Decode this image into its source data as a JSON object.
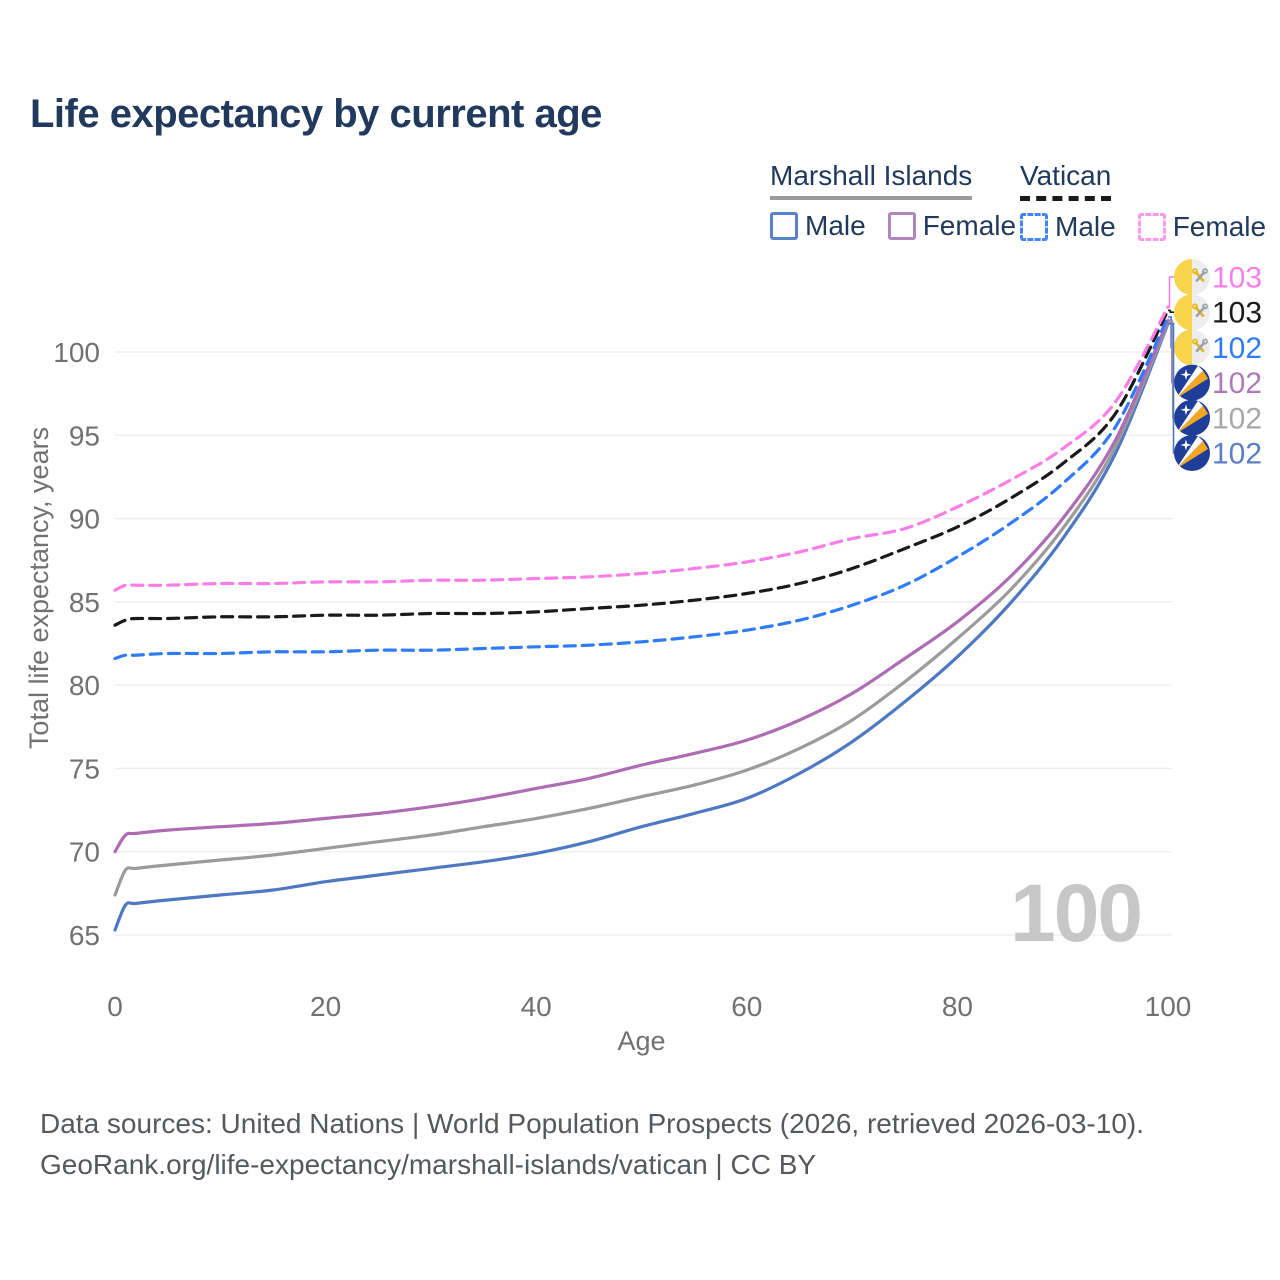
{
  "title": "Life expectancy by current age",
  "legend": {
    "groups": [
      {
        "name": "Marshall Islands",
        "underline_color": "#9b9b9b",
        "underline_style": "solid",
        "items": [
          {
            "label": "Male",
            "color": "#5b82c8",
            "style": "solid"
          },
          {
            "label": "Female",
            "color": "#b286bd",
            "style": "solid"
          }
        ]
      },
      {
        "name": "Vatican",
        "underline_color": "#1a1a1a",
        "underline_style": "dashed",
        "items": [
          {
            "label": "Male",
            "color": "#4285f4",
            "style": "dashed"
          },
          {
            "label": "Female",
            "color": "#fc9aec",
            "style": "dashed"
          }
        ]
      }
    ]
  },
  "chart_data": {
    "type": "line",
    "title": "Life expectancy by current age",
    "xlabel": "Age",
    "ylabel": "Total life expectancy, years",
    "xlim": [
      0,
      100
    ],
    "ylim": [
      64,
      104
    ],
    "x_ticks": [
      0,
      20,
      40,
      60,
      80,
      100
    ],
    "y_ticks": [
      65,
      70,
      75,
      80,
      85,
      90,
      95,
      100
    ],
    "grid": "horizontal-only",
    "legend_position": "top-right",
    "x": [
      0,
      1,
      2,
      5,
      10,
      15,
      20,
      25,
      30,
      35,
      40,
      45,
      50,
      55,
      60,
      65,
      70,
      75,
      80,
      85,
      90,
      95,
      100
    ],
    "series": [
      {
        "name": "Marshall Islands Male",
        "color": "#4f78c4",
        "dashed": false,
        "values": [
          65.3,
          66.8,
          66.9,
          67.1,
          67.4,
          67.7,
          68.2,
          68.6,
          69.0,
          69.4,
          69.9,
          70.6,
          71.5,
          72.3,
          73.2,
          74.7,
          76.6,
          79.0,
          81.7,
          84.9,
          88.8,
          93.9,
          101.7
        ]
      },
      {
        "name": "Marshall Islands All",
        "color": "#9b9b9b",
        "dashed": false,
        "values": [
          67.4,
          68.9,
          69.0,
          69.2,
          69.5,
          69.8,
          70.2,
          70.6,
          71.0,
          71.5,
          72.0,
          72.6,
          73.3,
          74.0,
          74.9,
          76.2,
          77.9,
          80.2,
          82.8,
          85.7,
          89.4,
          94.3,
          101.8
        ]
      },
      {
        "name": "Marshall Islands Female",
        "color": "#ae6cb4",
        "dashed": false,
        "values": [
          70.0,
          71.0,
          71.1,
          71.3,
          71.5,
          71.7,
          72.0,
          72.3,
          72.7,
          73.2,
          73.8,
          74.4,
          75.2,
          75.9,
          76.7,
          77.9,
          79.5,
          81.6,
          83.8,
          86.5,
          90.0,
          94.7,
          101.9
        ]
      },
      {
        "name": "Vatican Male",
        "color": "#2f7cf6",
        "dashed": true,
        "values": [
          81.6,
          81.8,
          81.8,
          81.9,
          81.9,
          82.0,
          82.0,
          82.1,
          82.1,
          82.2,
          82.3,
          82.4,
          82.6,
          82.9,
          83.3,
          83.9,
          84.8,
          86.0,
          87.7,
          89.7,
          92.1,
          95.5,
          102.1
        ]
      },
      {
        "name": "Vatican All",
        "color": "#1a1a1a",
        "dashed": true,
        "values": [
          83.6,
          83.9,
          84.0,
          84.0,
          84.1,
          84.1,
          84.2,
          84.2,
          84.3,
          84.3,
          84.4,
          84.6,
          84.8,
          85.1,
          85.5,
          86.1,
          87.0,
          88.2,
          89.5,
          91.2,
          93.3,
          96.3,
          102.5
        ]
      },
      {
        "name": "Vatican Female",
        "color": "#fb7de7",
        "dashed": true,
        "values": [
          85.7,
          86.0,
          86.0,
          86.0,
          86.1,
          86.1,
          86.2,
          86.2,
          86.3,
          86.3,
          86.4,
          86.5,
          86.7,
          87.0,
          87.4,
          88.0,
          88.8,
          89.4,
          90.7,
          92.3,
          94.2,
          97.0,
          102.7
        ]
      }
    ]
  },
  "right_labels": [
    {
      "series": "Vatican Female",
      "flag": "vatican",
      "value": "103",
      "color": "#fb7de7"
    },
    {
      "series": "Vatican All",
      "flag": "vatican",
      "value": "103",
      "color": "#1a1a1a"
    },
    {
      "series": "Vatican Male",
      "flag": "vatican",
      "value": "102",
      "color": "#2f7cf6"
    },
    {
      "series": "Marshall Islands Female",
      "flag": "marshall-islands",
      "value": "102",
      "color": "#b07ab8"
    },
    {
      "series": "Marshall Islands All",
      "flag": "marshall-islands",
      "value": "102",
      "color": "#a8a8a8"
    },
    {
      "series": "Marshall Islands Male",
      "flag": "marshall-islands",
      "value": "102",
      "color": "#5b7fc7"
    }
  ],
  "watermark": "100",
  "footer": {
    "line1": "Data sources: United Nations | World Population Prospects (2026, retrieved 2026-03-10).",
    "line2": "GeoRank.org/life-expectancy/marshall-islands/vatican | CC BY"
  }
}
